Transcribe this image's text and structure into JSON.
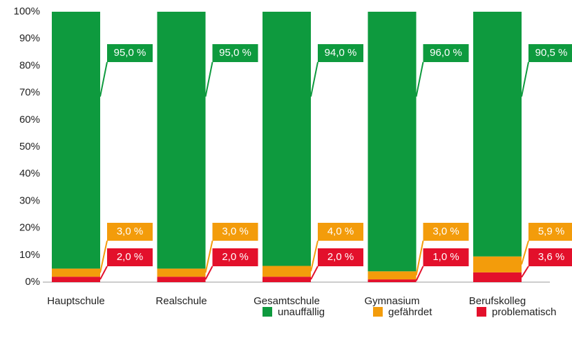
{
  "chart_data": {
    "type": "stacked_bar",
    "categories": [
      "Hauptschule",
      "Realschule",
      "Gesamtschule",
      "Gymnasium",
      "Berufskolleg"
    ],
    "series": [
      {
        "name": "unauffällig",
        "color": "#0e9a3e",
        "values": [
          95.0,
          95.0,
          94.0,
          96.0,
          90.5
        ],
        "value_labels": [
          "95,0 %",
          "95,0 %",
          "94,0 %",
          "96,0 %",
          "90,5 %"
        ]
      },
      {
        "name": "gefährdet",
        "color": "#f39c0b",
        "values": [
          3.0,
          3.0,
          4.0,
          3.0,
          5.9
        ],
        "value_labels": [
          "3,0 %",
          "3,0 %",
          "4,0 %",
          "3,0 %",
          "5,9 %"
        ]
      },
      {
        "name": "problematisch",
        "color": "#e3102b",
        "values": [
          2.0,
          2.0,
          2.0,
          1.0,
          3.6
        ],
        "value_labels": [
          "2,0 %",
          "2,0 %",
          "2,0 %",
          "1,0 %",
          "3,6 %"
        ]
      }
    ],
    "ylim": [
      0,
      100
    ],
    "yticks": [
      {
        "value": 0,
        "label": "0%"
      },
      {
        "value": 10,
        "label": "10%"
      },
      {
        "value": 20,
        "label": "20%"
      },
      {
        "value": 30,
        "label": "30%"
      },
      {
        "value": 40,
        "label": "40%"
      },
      {
        "value": 50,
        "label": "50%"
      },
      {
        "value": 60,
        "label": "60%"
      },
      {
        "value": 70,
        "label": "70%"
      },
      {
        "value": 80,
        "label": "80%"
      },
      {
        "value": 90,
        "label": "90%"
      },
      {
        "value": 100,
        "label": "100%"
      }
    ]
  }
}
